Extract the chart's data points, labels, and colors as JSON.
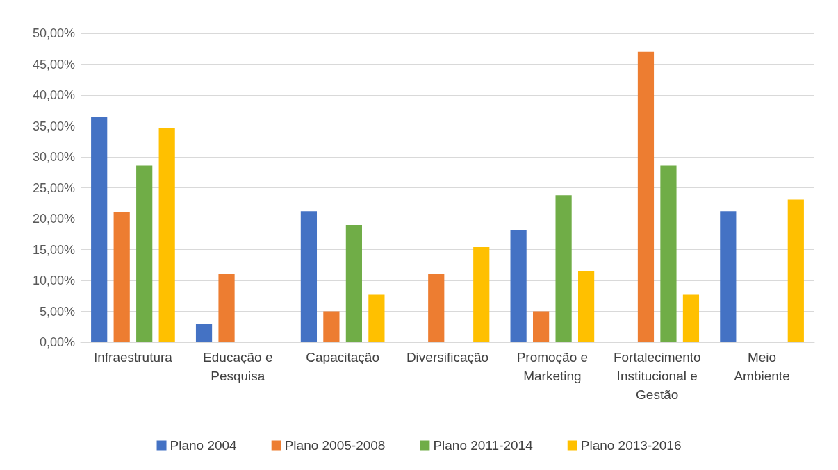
{
  "chart_data": {
    "type": "bar",
    "categories": [
      "Infraestrutura",
      "Educação e\nPesquisa",
      "Capacitação",
      "Diversificação",
      "Promoção e\nMarketing",
      "Fortalecimento\nInstitucional e\nGestão",
      "Meio\nAmbiente"
    ],
    "series": [
      {
        "name": "Plano 2004",
        "color": "#4472c4",
        "values": [
          36.4,
          3.0,
          21.2,
          0,
          18.2,
          0,
          21.2
        ]
      },
      {
        "name": "Plano 2005-2008",
        "color": "#ed7d31",
        "values": [
          21.0,
          11.0,
          5.0,
          11.0,
          5.0,
          47.0,
          0
        ]
      },
      {
        "name": "Plano 2011-2014",
        "color": "#70ad47",
        "values": [
          28.6,
          0,
          19.0,
          0,
          23.8,
          28.6,
          0
        ]
      },
      {
        "name": "Plano 2013-2016",
        "color": "#ffc000",
        "values": [
          34.6,
          0,
          7.7,
          15.4,
          11.5,
          7.7,
          23.1
        ]
      }
    ],
    "ylim": [
      0,
      50
    ],
    "yticks": [
      {
        "value": 0,
        "label": "0,00%"
      },
      {
        "value": 5,
        "label": "5,00%"
      },
      {
        "value": 10,
        "label": "10,00%"
      },
      {
        "value": 15,
        "label": "15,00%"
      },
      {
        "value": 20,
        "label": "20,00%"
      },
      {
        "value": 25,
        "label": "25,00%"
      },
      {
        "value": 30,
        "label": "30,00%"
      },
      {
        "value": 35,
        "label": "35,00%"
      },
      {
        "value": 40,
        "label": "40,00%"
      },
      {
        "value": 45,
        "label": "45,00%"
      },
      {
        "value": 50,
        "label": "50,00%"
      }
    ],
    "grid": "y",
    "legend": "bottom"
  }
}
